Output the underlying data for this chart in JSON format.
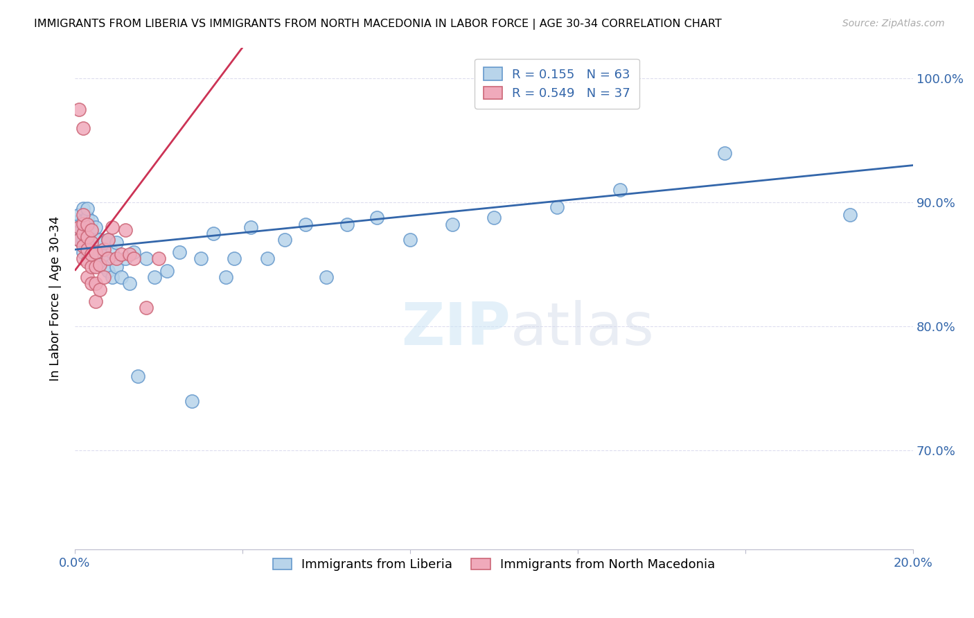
{
  "title": "IMMIGRANTS FROM LIBERIA VS IMMIGRANTS FROM NORTH MACEDONIA IN LABOR FORCE | AGE 30-34 CORRELATION CHART",
  "source": "Source: ZipAtlas.com",
  "ylabel": "In Labor Force | Age 30-34",
  "x_min": 0.0,
  "x_max": 0.2,
  "y_min": 0.62,
  "y_max": 1.025,
  "liberia_color": "#b8d4ea",
  "liberia_edge_color": "#6699cc",
  "macedonia_color": "#f0aabb",
  "macedonia_edge_color": "#cc6677",
  "liberia_R": 0.155,
  "liberia_N": 63,
  "macedonia_R": 0.549,
  "macedonia_N": 37,
  "liberia_line_color": "#3366aa",
  "macedonia_line_color": "#cc3355",
  "watermark_zip": "ZIP",
  "watermark_atlas": "atlas",
  "legend_label_liberia": "Immigrants from Liberia",
  "legend_label_macedonia": "Immigrants from North Macedonia",
  "grid_color": "#ddddee",
  "liberia_x": [
    0.001,
    0.001,
    0.001,
    0.001,
    0.002,
    0.002,
    0.002,
    0.002,
    0.002,
    0.003,
    0.003,
    0.003,
    0.003,
    0.003,
    0.003,
    0.004,
    0.004,
    0.004,
    0.004,
    0.005,
    0.005,
    0.005,
    0.005,
    0.006,
    0.006,
    0.006,
    0.007,
    0.007,
    0.007,
    0.008,
    0.008,
    0.009,
    0.009,
    0.01,
    0.01,
    0.011,
    0.012,
    0.013,
    0.014,
    0.015,
    0.017,
    0.019,
    0.022,
    0.025,
    0.028,
    0.03,
    0.033,
    0.036,
    0.038,
    0.042,
    0.046,
    0.05,
    0.055,
    0.06,
    0.065,
    0.072,
    0.08,
    0.09,
    0.1,
    0.115,
    0.13,
    0.155,
    0.185
  ],
  "liberia_y": [
    0.87,
    0.88,
    0.885,
    0.89,
    0.86,
    0.87,
    0.88,
    0.885,
    0.895,
    0.86,
    0.87,
    0.875,
    0.882,
    0.888,
    0.895,
    0.855,
    0.865,
    0.875,
    0.885,
    0.855,
    0.862,
    0.87,
    0.88,
    0.85,
    0.86,
    0.87,
    0.848,
    0.858,
    0.868,
    0.845,
    0.87,
    0.84,
    0.86,
    0.848,
    0.868,
    0.84,
    0.855,
    0.835,
    0.86,
    0.76,
    0.855,
    0.84,
    0.845,
    0.86,
    0.74,
    0.855,
    0.875,
    0.84,
    0.855,
    0.88,
    0.855,
    0.87,
    0.882,
    0.84,
    0.882,
    0.888,
    0.87,
    0.882,
    0.888,
    0.896,
    0.91,
    0.94,
    0.89
  ],
  "macedonia_x": [
    0.001,
    0.001,
    0.001,
    0.002,
    0.002,
    0.002,
    0.002,
    0.002,
    0.002,
    0.003,
    0.003,
    0.003,
    0.003,
    0.003,
    0.004,
    0.004,
    0.004,
    0.004,
    0.004,
    0.005,
    0.005,
    0.005,
    0.005,
    0.006,
    0.006,
    0.007,
    0.007,
    0.008,
    0.008,
    0.009,
    0.01,
    0.011,
    0.012,
    0.013,
    0.014,
    0.017,
    0.02
  ],
  "macedonia_y": [
    0.87,
    0.88,
    0.975,
    0.855,
    0.865,
    0.875,
    0.883,
    0.89,
    0.96,
    0.84,
    0.852,
    0.862,
    0.872,
    0.882,
    0.835,
    0.848,
    0.858,
    0.868,
    0.878,
    0.82,
    0.835,
    0.848,
    0.86,
    0.83,
    0.85,
    0.84,
    0.862,
    0.855,
    0.87,
    0.88,
    0.855,
    0.858,
    0.878,
    0.858,
    0.855,
    0.815,
    0.855
  ],
  "blue_line_x0": 0.0,
  "blue_line_y0": 0.862,
  "blue_line_x1": 0.2,
  "blue_line_y1": 0.93,
  "pink_line_x0": 0.0,
  "pink_line_y0": 0.845,
  "pink_line_x1": 0.04,
  "pink_line_y1": 1.025
}
